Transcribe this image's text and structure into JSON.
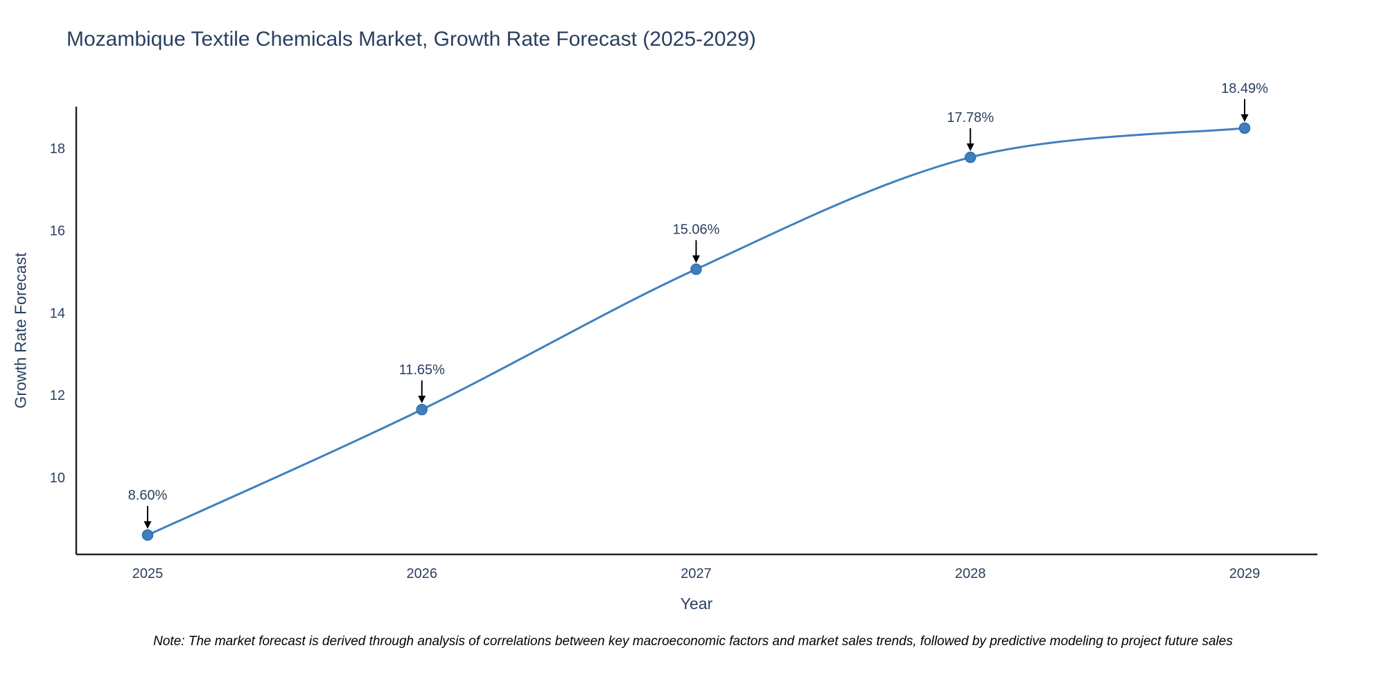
{
  "title": "Mozambique Textile Chemicals Market, Growth Rate Forecast (2025-2029)",
  "note": "Note: The market forecast is derived through analysis of correlations between key macroeconomic factors and market sales trends, followed by predictive modeling to project future sales",
  "chart_data": {
    "type": "line",
    "title": "Mozambique Textile Chemicals Market, Growth Rate Forecast (2025-2029)",
    "xlabel": "Year",
    "ylabel": "Growth Rate Forecast",
    "categories": [
      "2025",
      "2026",
      "2027",
      "2028",
      "2029"
    ],
    "values": [
      8.6,
      11.65,
      15.06,
      17.78,
      18.49
    ],
    "point_labels": [
      "8.60%",
      "11.65%",
      "15.06%",
      "17.78%",
      "18.49%"
    ],
    "y_ticks": [
      10,
      12,
      14,
      16,
      18
    ],
    "ylim": [
      8.13,
      19.01
    ],
    "grid": false,
    "legend": "none",
    "line_shape": "spline",
    "line_color": "#3f7fbf",
    "marker_color": "#3f7fbf",
    "marker_edge_color": "#2f6da8",
    "axis_line_color": "#222222",
    "annotation_arrow_color": "#000000",
    "text_color": "#2a3f5f"
  }
}
